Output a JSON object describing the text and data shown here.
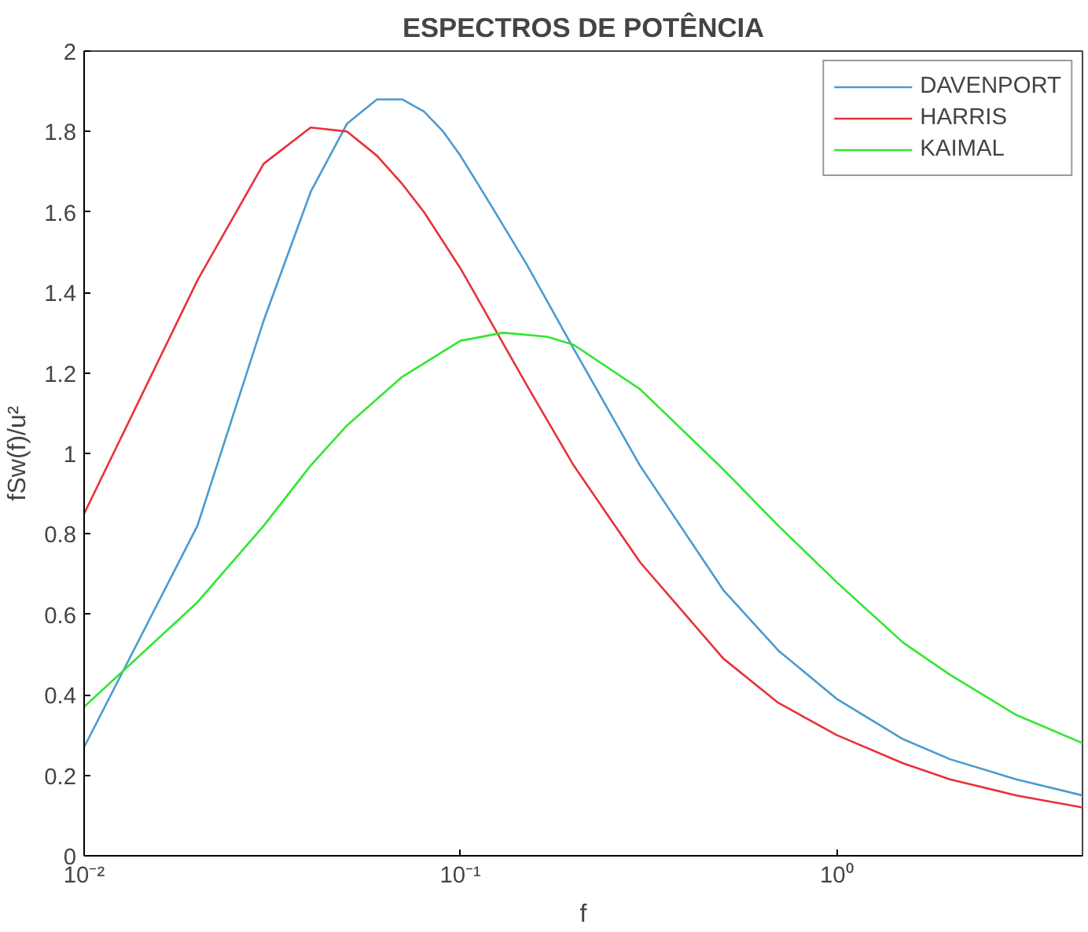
{
  "chart_data": {
    "type": "line",
    "title": "ESPECTROS DE POTÊNCIA",
    "xlabel": "f",
    "ylabel": "fSw(f)/u²",
    "log": "x",
    "xlim": [
      0.01,
      4.5
    ],
    "xticks": [
      {
        "value": 0.01,
        "label": "10⁻²"
      },
      {
        "value": 0.1,
        "label": "10⁻¹"
      },
      {
        "value": 1,
        "label": "10⁰"
      }
    ],
    "ylim": [
      0,
      2
    ],
    "yticks": [
      0,
      0.2,
      0.4,
      0.6,
      0.8,
      1,
      1.2,
      1.4,
      1.6,
      1.8,
      2
    ],
    "grid": false,
    "legend": "top right",
    "marker": "none",
    "line_style": "solid",
    "series": [
      {
        "name": "DAVENPORT",
        "color": "#4a9bd0",
        "x": [
          0.01,
          0.02,
          0.03,
          0.04,
          0.05,
          0.06,
          0.07,
          0.08,
          0.09,
          0.1,
          0.12,
          0.15,
          0.2,
          0.3,
          0.5,
          0.7,
          1,
          1.5,
          2,
          3,
          4.5
        ],
        "values": [
          0.27,
          0.82,
          1.33,
          1.65,
          1.82,
          1.88,
          1.88,
          1.85,
          1.8,
          1.74,
          1.62,
          1.47,
          1.26,
          0.97,
          0.66,
          0.51,
          0.39,
          0.29,
          0.24,
          0.19,
          0.15
        ]
      },
      {
        "name": "HARRIS",
        "color": "#e8313b",
        "x": [
          0.01,
          0.02,
          0.03,
          0.04,
          0.05,
          0.06,
          0.07,
          0.08,
          0.1,
          0.12,
          0.15,
          0.2,
          0.3,
          0.5,
          0.7,
          1,
          1.5,
          2,
          3,
          4.5
        ],
        "values": [
          0.85,
          1.43,
          1.72,
          1.81,
          1.8,
          1.74,
          1.67,
          1.6,
          1.46,
          1.33,
          1.17,
          0.97,
          0.73,
          0.49,
          0.38,
          0.3,
          0.23,
          0.19,
          0.15,
          0.12
        ]
      },
      {
        "name": "KAIMAL",
        "color": "#33e633",
        "x": [
          0.01,
          0.02,
          0.03,
          0.04,
          0.05,
          0.07,
          0.1,
          0.13,
          0.17,
          0.2,
          0.3,
          0.5,
          0.7,
          1,
          1.5,
          2,
          3,
          4.5
        ],
        "values": [
          0.37,
          0.63,
          0.82,
          0.97,
          1.07,
          1.19,
          1.28,
          1.3,
          1.29,
          1.27,
          1.16,
          0.96,
          0.82,
          0.68,
          0.53,
          0.45,
          0.35,
          0.28
        ]
      }
    ]
  }
}
